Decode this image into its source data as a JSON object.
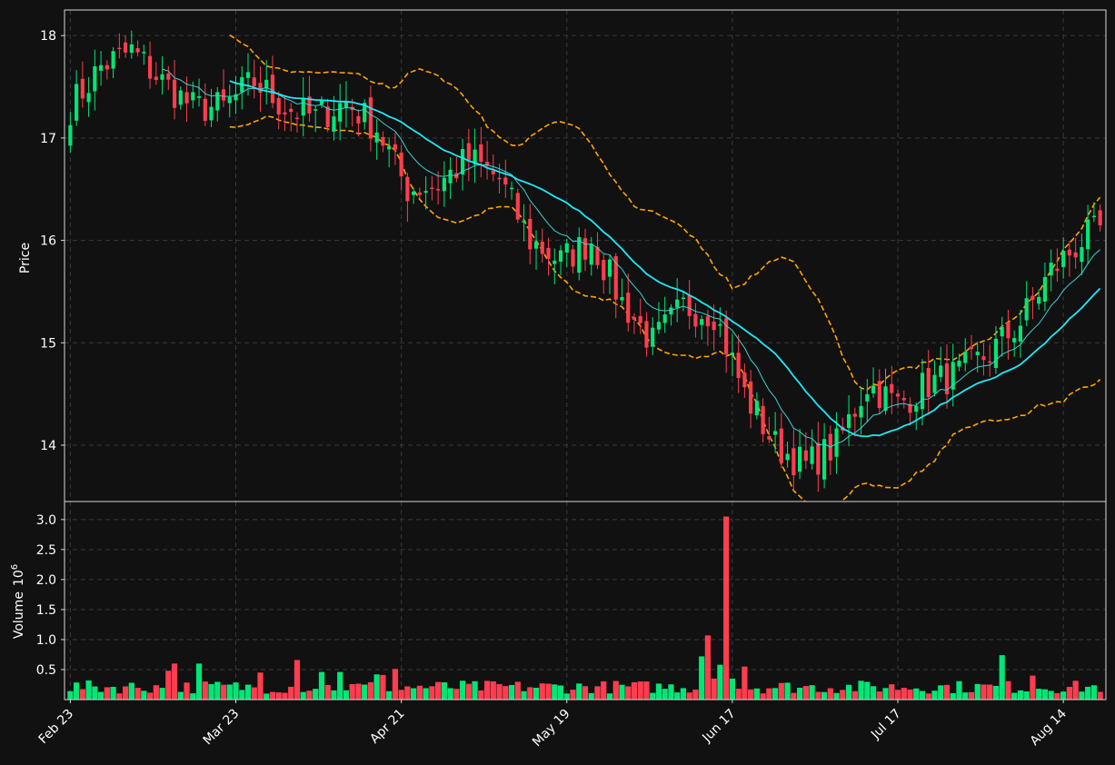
{
  "chart_data": [
    {
      "panel": "price",
      "type": "candlestick",
      "ylabel": "Price",
      "ylim": [
        13.45,
        18.25
      ],
      "yticks": [
        "14",
        "15",
        "16",
        "17",
        "18"
      ],
      "xticks": [
        "Feb 23",
        "Mar 23",
        "Apr 21",
        "May 19",
        "Jun 17",
        "Jul 17",
        "Aug 14"
      ],
      "grid": true,
      "colors": {
        "up": "#00e676",
        "down": "#ff3d4f",
        "ma_fast": "#3fd1d1",
        "ma_slow": "#1de9f6",
        "bands": "#ffa500"
      },
      "trend_anchors": [
        [
          0,
          17.3
        ],
        [
          5,
          17.7
        ],
        [
          10,
          17.85
        ],
        [
          15,
          17.55
        ],
        [
          20,
          17.3
        ],
        [
          25,
          17.3
        ],
        [
          30,
          17.55
        ],
        [
          35,
          17.3
        ],
        [
          40,
          17.2
        ],
        [
          45,
          17.35
        ],
        [
          50,
          17.1
        ],
        [
          55,
          16.5
        ],
        [
          60,
          16.55
        ],
        [
          65,
          16.8
        ],
        [
          70,
          16.6
        ],
        [
          75,
          16.0
        ],
        [
          80,
          15.8
        ],
        [
          85,
          16.0
        ],
        [
          90,
          15.4
        ],
        [
          95,
          15.0
        ],
        [
          100,
          15.35
        ],
        [
          105,
          15.3
        ],
        [
          110,
          14.5
        ],
        [
          115,
          14.0
        ],
        [
          120,
          13.8
        ],
        [
          125,
          14.0
        ],
        [
          130,
          14.6
        ],
        [
          135,
          14.4
        ],
        [
          140,
          14.6
        ],
        [
          145,
          14.7
        ],
        [
          150,
          14.9
        ],
        [
          155,
          15.2
        ],
        [
          160,
          15.7
        ],
        [
          165,
          16.0
        ],
        [
          168,
          16.1
        ]
      ]
    },
    {
      "panel": "volume",
      "type": "bar",
      "ylabel": "Volume",
      "ylabel_exp": "10",
      "ylabel_sup": "6",
      "ylim": [
        0,
        3.3
      ],
      "yticks": [
        "0.5",
        "1.0",
        "1.5",
        "2.0",
        "2.5",
        "3.0"
      ],
      "spikes": [
        [
          16,
          0.48
        ],
        [
          17,
          0.6
        ],
        [
          21,
          0.6
        ],
        [
          31,
          0.45
        ],
        [
          37,
          0.66
        ],
        [
          41,
          0.46
        ],
        [
          44,
          0.46
        ],
        [
          50,
          0.42
        ],
        [
          51,
          0.41
        ],
        [
          53,
          0.51
        ],
        [
          103,
          0.72
        ],
        [
          104,
          1.07
        ],
        [
          105,
          0.35
        ],
        [
          106,
          0.58
        ],
        [
          107,
          3.05
        ],
        [
          108,
          0.35
        ],
        [
          110,
          0.55
        ],
        [
          152,
          0.74
        ],
        [
          157,
          0.4
        ]
      ]
    }
  ]
}
